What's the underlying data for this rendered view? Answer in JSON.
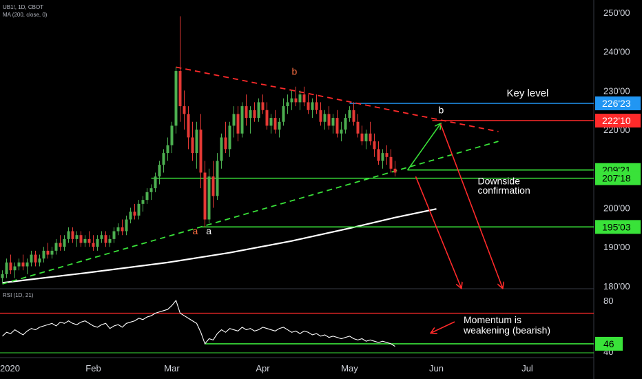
{
  "header": {
    "symbol_line": "UB1!, 1D, CBOT",
    "ma_line": "MA (200, close, 0)",
    "rsi_line": "RSI (1D, 21)"
  },
  "colors": {
    "up": "#4caf50",
    "down": "#e53935",
    "green_line": "#39e239",
    "red_line": "#ff2a2a",
    "blue_line": "#2196f3",
    "ma": "#ffffff"
  },
  "chart_data": {
    "type": "candlestick",
    "price_axis": {
      "ticks": [
        "250'00",
        "240'00",
        "230'00",
        "220'00",
        "210'00",
        "200'00",
        "190'00",
        "180'00"
      ],
      "tick_values": [
        250,
        240,
        230,
        220,
        210,
        200,
        190,
        180
      ],
      "range": [
        180,
        252
      ]
    },
    "x_axis": {
      "labels": [
        "2020",
        "Feb",
        "Mar",
        "Apr",
        "May",
        "Jun",
        "Jul"
      ],
      "label_bars": [
        0,
        22,
        41,
        63,
        84,
        105,
        127
      ],
      "bar_count": 140
    },
    "candles": [
      [
        182,
        184,
        181,
        183
      ],
      [
        183,
        187,
        182,
        186
      ],
      [
        186,
        188,
        183,
        184
      ],
      [
        184,
        186,
        182,
        185
      ],
      [
        185,
        187,
        184,
        186
      ],
      [
        186,
        188,
        184,
        185
      ],
      [
        185,
        187,
        183,
        186
      ],
      [
        186,
        189,
        185,
        188
      ],
      [
        188,
        189,
        185,
        186
      ],
      [
        186,
        188,
        185,
        187
      ],
      [
        187,
        190,
        186,
        189
      ],
      [
        189,
        191,
        187,
        188
      ],
      [
        188,
        190,
        187,
        189
      ],
      [
        189,
        192,
        188,
        191
      ],
      [
        191,
        193,
        189,
        190
      ],
      [
        190,
        193,
        189,
        192
      ],
      [
        192,
        195,
        191,
        194
      ],
      [
        194,
        195,
        191,
        192
      ],
      [
        192,
        194,
        190,
        193
      ],
      [
        193,
        194,
        190,
        191
      ],
      [
        191,
        193,
        190,
        192
      ],
      [
        192,
        194,
        190,
        191
      ],
      [
        191,
        193,
        189,
        190
      ],
      [
        190,
        193,
        189,
        192
      ],
      [
        192,
        194,
        191,
        193
      ],
      [
        193,
        194,
        190,
        191
      ],
      [
        191,
        193,
        190,
        192
      ],
      [
        192,
        195,
        191,
        194
      ],
      [
        194,
        196,
        193,
        195
      ],
      [
        195,
        197,
        193,
        194
      ],
      [
        194,
        198,
        193,
        197
      ],
      [
        197,
        200,
        196,
        199
      ],
      [
        199,
        201,
        197,
        198
      ],
      [
        198,
        202,
        197,
        201
      ],
      [
        201,
        203,
        199,
        202
      ],
      [
        202,
        205,
        201,
        204
      ],
      [
        204,
        206,
        202,
        205
      ],
      [
        205,
        209,
        204,
        208
      ],
      [
        208,
        212,
        206,
        211
      ],
      [
        211,
        215,
        209,
        214
      ],
      [
        214,
        218,
        212,
        216
      ],
      [
        216,
        222,
        214,
        221
      ],
      [
        221,
        236,
        219,
        235
      ],
      [
        235,
        249,
        222,
        226
      ],
      [
        226,
        230,
        220,
        224
      ],
      [
        224,
        226,
        215,
        218
      ],
      [
        218,
        222,
        212,
        214
      ],
      [
        214,
        222,
        210,
        220
      ],
      [
        220,
        224,
        205,
        209
      ],
      [
        209,
        212,
        195,
        197
      ],
      [
        197,
        210,
        196,
        208
      ],
      [
        208,
        212,
        200,
        203
      ],
      [
        203,
        214,
        202,
        212
      ],
      [
        212,
        219,
        210,
        218
      ],
      [
        218,
        222,
        214,
        215
      ],
      [
        215,
        222,
        213,
        221
      ],
      [
        221,
        226,
        218,
        224
      ],
      [
        224,
        226,
        217,
        219
      ],
      [
        219,
        227,
        218,
        226
      ],
      [
        226,
        229,
        221,
        223
      ],
      [
        223,
        226,
        219,
        225
      ],
      [
        225,
        227,
        222,
        223
      ],
      [
        223,
        228,
        222,
        227
      ],
      [
        227,
        229,
        224,
        225
      ],
      [
        225,
        227,
        220,
        221
      ],
      [
        221,
        224,
        219,
        223
      ],
      [
        223,
        225,
        219,
        220
      ],
      [
        220,
        223,
        218,
        222
      ],
      [
        222,
        228,
        221,
        226
      ],
      [
        226,
        229,
        224,
        227
      ],
      [
        227,
        230,
        225,
        228
      ],
      [
        228,
        231,
        226,
        227
      ],
      [
        227,
        230,
        225,
        229
      ],
      [
        229,
        231,
        226,
        227
      ],
      [
        227,
        229,
        224,
        225
      ],
      [
        225,
        228,
        223,
        227
      ],
      [
        227,
        229,
        224,
        225
      ],
      [
        225,
        227,
        221,
        222
      ],
      [
        222,
        225,
        220,
        224
      ],
      [
        224,
        226,
        220,
        221
      ],
      [
        221,
        224,
        219,
        223
      ],
      [
        223,
        225,
        218,
        219
      ],
      [
        219,
        222,
        217,
        220
      ],
      [
        220,
        224,
        219,
        223
      ],
      [
        223,
        226,
        222,
        225
      ],
      [
        225,
        227,
        221,
        222
      ],
      [
        222,
        224,
        218,
        219
      ],
      [
        219,
        221,
        216,
        217
      ],
      [
        217,
        220,
        215,
        219
      ],
      [
        219,
        222,
        216,
        217
      ],
      [
        217,
        219,
        213,
        215
      ],
      [
        215,
        217,
        211,
        212
      ],
      [
        212,
        215,
        210,
        214
      ],
      [
        214,
        216,
        211,
        213
      ],
      [
        213,
        215,
        209,
        210
      ],
      [
        210,
        212,
        208,
        209
      ]
    ],
    "ma200": [
      [
        0,
        180.8
      ],
      [
        20,
        183.3
      ],
      [
        40,
        186.0
      ],
      [
        55,
        188.5
      ],
      [
        70,
        191.5
      ],
      [
        85,
        195.0
      ],
      [
        95,
        197.5
      ],
      [
        105,
        199.7
      ]
    ],
    "levels": [
      {
        "label": "226'23",
        "value": 226.72,
        "color": "#2196f3",
        "from_bar": 84
      },
      {
        "label": "222'10",
        "value": 222.31,
        "color": "#ff2a2a",
        "from_bar": 104
      },
      {
        "label": "209'21",
        "value": 209.66,
        "color": "#39e239",
        "from_bar": 98
      },
      {
        "label": "207'18",
        "value": 207.56,
        "color": "#39e239",
        "from_bar": 36
      },
      {
        "label": "195'03",
        "value": 195.09,
        "color": "#39e239",
        "from_bar": 48
      }
    ],
    "trendlines": [
      {
        "style": "dashed",
        "color": "#ff2a2a",
        "points": [
          [
            42,
            236
          ],
          [
            120,
            219.5
          ]
        ]
      },
      {
        "style": "dashed",
        "color": "#39e239",
        "points": [
          [
            0,
            180.5
          ],
          [
            120,
            217
          ]
        ]
      }
    ],
    "arrows": [
      {
        "color": "#39e239",
        "points": [
          [
            98,
            209.6
          ],
          [
            106,
            221.5
          ]
        ]
      },
      {
        "color": "#ff2a2a",
        "points": [
          [
            106,
            221.5
          ],
          [
            121,
            179.5
          ]
        ]
      },
      {
        "color": "#ff2a2a",
        "points": [
          [
            100,
            208
          ],
          [
            111,
            179.5
          ]
        ]
      }
    ],
    "annotations": [
      {
        "text": "Key level",
        "bar": 122,
        "value": 228.5,
        "color": "#ffffff",
        "size": 15
      },
      {
        "text": "b",
        "bar": 105.5,
        "value": 224.2,
        "color": "#ffffff",
        "size": 14
      },
      {
        "text": "b",
        "bar": 70,
        "value": 234.0,
        "color": "#ff7043",
        "size": 14
      },
      {
        "text": "a",
        "bar": 46,
        "value": 193.2,
        "color": "#ff7043",
        "size": 14
      },
      {
        "text": "a",
        "bar": 49.3,
        "value": 193.2,
        "color": "#ffffff",
        "size": 14
      },
      {
        "text": "Downside",
        "bar": 115,
        "value": 206.0,
        "color": "#ffffff",
        "size": 14
      },
      {
        "text": "confirmation",
        "bar": 115,
        "value": 203.6,
        "color": "#ffffff",
        "size": 14
      }
    ],
    "rsi": {
      "ticks": [
        "80",
        "40"
      ],
      "tick_values": [
        80,
        40
      ],
      "range": [
        35,
        85
      ],
      "overbought": 70,
      "level_label": "46",
      "level_value": 46,
      "annotation_lines": [
        "Momentum is",
        "weakening (bearish)"
      ],
      "values": [
        52,
        55,
        54,
        57,
        55,
        53,
        56,
        58,
        57,
        59,
        60,
        61,
        62,
        60,
        63,
        62,
        64,
        62,
        61,
        63,
        64,
        62,
        60,
        59,
        61,
        62,
        58,
        60,
        61,
        59,
        62,
        63,
        64,
        66,
        65,
        67,
        68,
        70,
        71,
        72,
        73,
        76,
        80,
        70,
        68,
        66,
        64,
        62,
        55,
        46,
        50,
        49,
        54,
        57,
        55,
        58,
        57,
        56,
        59,
        57,
        58,
        56,
        57,
        59,
        58,
        57,
        56,
        58,
        59,
        57,
        55,
        56,
        54,
        56,
        55,
        53,
        54,
        52,
        53,
        51,
        52,
        51,
        50,
        51,
        52,
        50,
        49,
        50,
        48,
        49,
        48,
        47,
        48,
        47,
        46,
        44
      ]
    }
  }
}
